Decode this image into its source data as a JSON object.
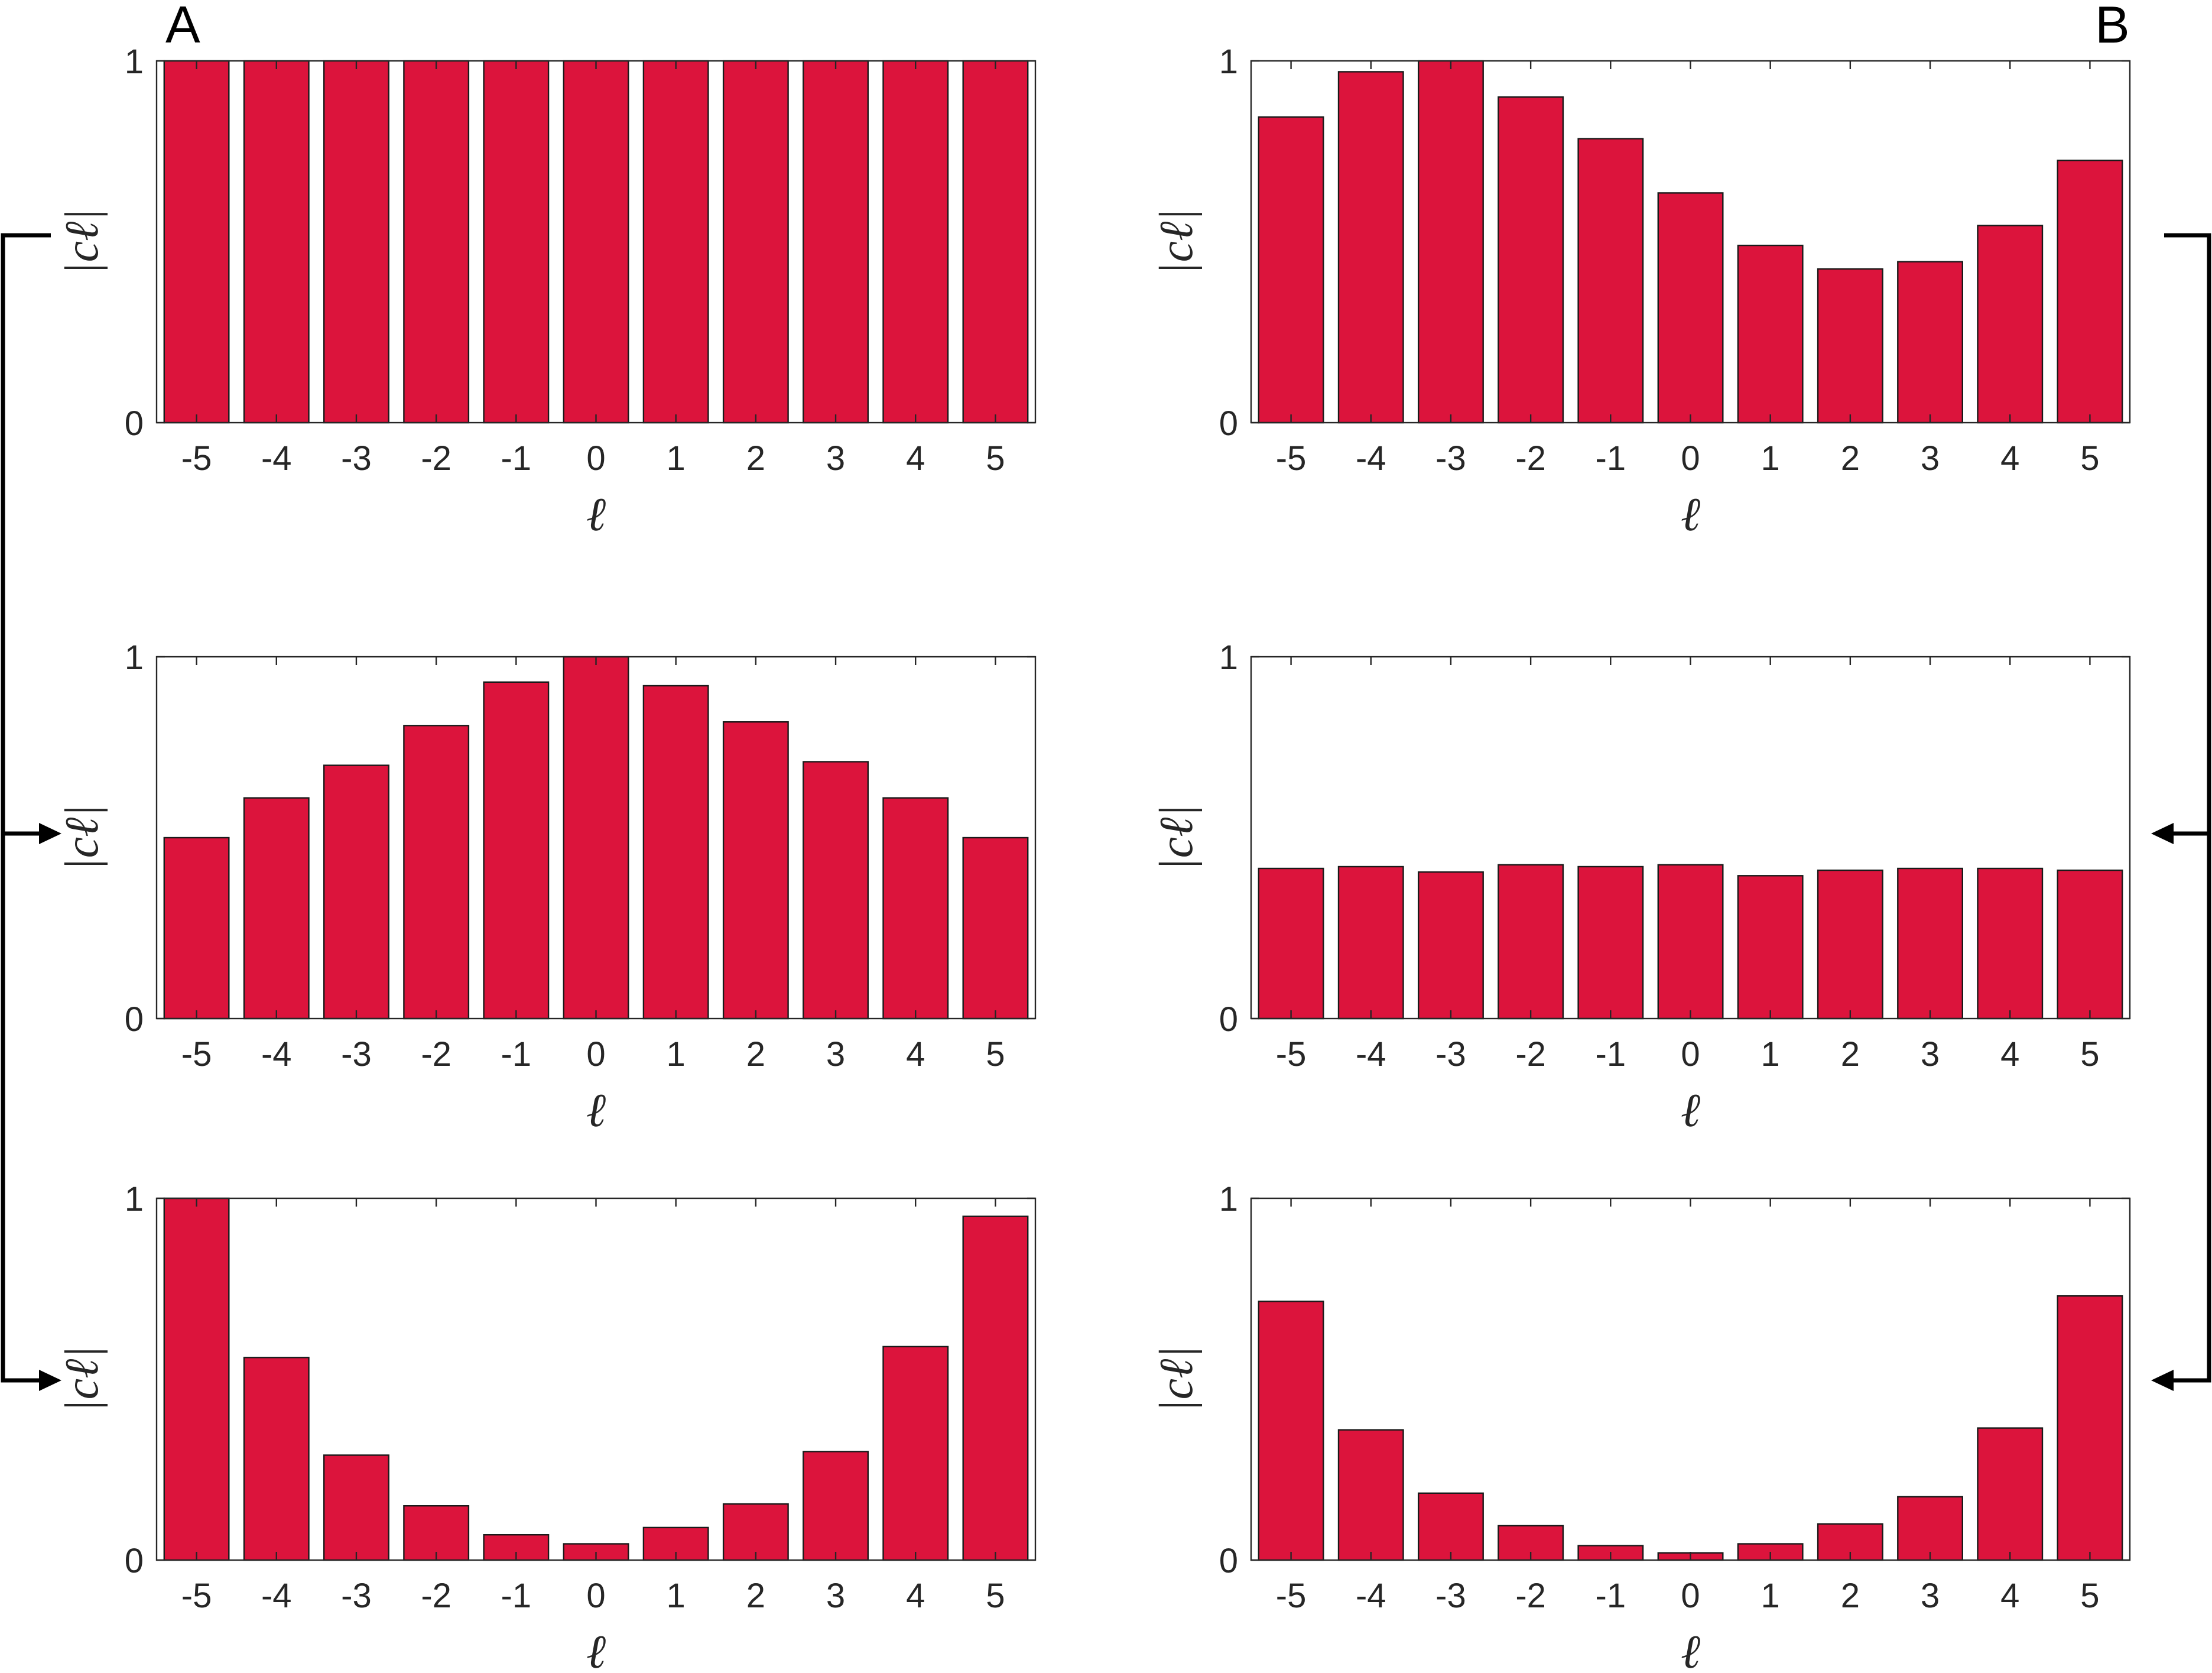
{
  "panel_labels": {
    "left": "A",
    "right": "B"
  },
  "colors": {
    "bar": "#DC143C",
    "axis": "#262626",
    "bracket": "#000000"
  },
  "chart_data": [
    {
      "type": "bar",
      "panel": "A",
      "row": 1,
      "xlabel": "ℓ",
      "ylabel": "|cℓ|",
      "categories": [
        "-5",
        "-4",
        "-3",
        "-2",
        "-1",
        "0",
        "1",
        "2",
        "3",
        "4",
        "5"
      ],
      "values": [
        1,
        1,
        1,
        1,
        1,
        1,
        1,
        1,
        1,
        1,
        1
      ],
      "ylim": [
        0,
        1
      ],
      "yticks": [
        "0",
        "1"
      ],
      "grid": false
    },
    {
      "type": "bar",
      "panel": "A",
      "row": 2,
      "xlabel": "ℓ",
      "ylabel": "|cℓ|",
      "categories": [
        "-5",
        "-4",
        "-3",
        "-2",
        "-1",
        "0",
        "1",
        "2",
        "3",
        "4",
        "5"
      ],
      "values": [
        0.5,
        0.61,
        0.7,
        0.81,
        0.93,
        1.0,
        0.92,
        0.82,
        0.71,
        0.61,
        0.5
      ],
      "ylim": [
        0,
        1
      ],
      "yticks": [
        "0",
        "1"
      ],
      "grid": false
    },
    {
      "type": "bar",
      "panel": "A",
      "row": 3,
      "xlabel": "ℓ",
      "ylabel": "|cℓ|",
      "categories": [
        "-5",
        "-4",
        "-3",
        "-2",
        "-1",
        "0",
        "1",
        "2",
        "3",
        "4",
        "5"
      ],
      "values": [
        1.0,
        0.56,
        0.29,
        0.15,
        0.07,
        0.045,
        0.09,
        0.155,
        0.3,
        0.59,
        0.95
      ],
      "ylim": [
        0,
        1
      ],
      "yticks": [
        "0",
        "1"
      ],
      "grid": false
    },
    {
      "type": "bar",
      "panel": "B",
      "row": 1,
      "xlabel": "ℓ",
      "ylabel": "|cℓ|",
      "categories": [
        "-5",
        "-4",
        "-3",
        "-2",
        "-1",
        "0",
        "1",
        "2",
        "3",
        "4",
        "5"
      ],
      "values": [
        0.845,
        0.97,
        1.0,
        0.9,
        0.785,
        0.635,
        0.49,
        0.425,
        0.445,
        0.545,
        0.725
      ],
      "ylim": [
        0,
        1
      ],
      "yticks": [
        "0",
        "1"
      ],
      "grid": false
    },
    {
      "type": "bar",
      "panel": "B",
      "row": 2,
      "xlabel": "ℓ",
      "ylabel": "|cℓ|",
      "categories": [
        "-5",
        "-4",
        "-3",
        "-2",
        "-1",
        "0",
        "1",
        "2",
        "3",
        "4",
        "5"
      ],
      "values": [
        0.415,
        0.42,
        0.405,
        0.425,
        0.42,
        0.425,
        0.395,
        0.41,
        0.415,
        0.415,
        0.41
      ],
      "ylim": [
        0,
        1
      ],
      "yticks": [
        "0",
        "1"
      ],
      "grid": false
    },
    {
      "type": "bar",
      "panel": "B",
      "row": 3,
      "xlabel": "ℓ",
      "ylabel": "|cℓ|",
      "categories": [
        "-5",
        "-4",
        "-3",
        "-2",
        "-1",
        "0",
        "1",
        "2",
        "3",
        "4",
        "5"
      ],
      "values": [
        0.715,
        0.36,
        0.185,
        0.095,
        0.04,
        0.02,
        0.045,
        0.1,
        0.175,
        0.365,
        0.73
      ],
      "ylim": [
        0,
        1
      ],
      "yticks": [
        "0",
        "1"
      ],
      "grid": false
    }
  ]
}
